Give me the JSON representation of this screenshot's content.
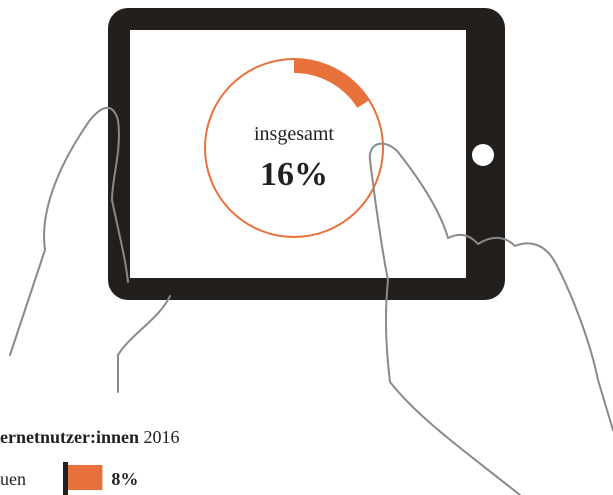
{
  "chart_data": [
    {
      "type": "donut",
      "label": "insgesamt",
      "values": [
        16
      ],
      "value_labels": [
        "16%"
      ],
      "color": "#e8703a"
    },
    {
      "type": "bar",
      "title_bold": "ernetnutzer:innen",
      "title_rest": "2016",
      "categories": [
        "uen"
      ],
      "values": [
        8
      ],
      "value_labels": [
        "8%"
      ],
      "color": "#e8703a"
    }
  ]
}
